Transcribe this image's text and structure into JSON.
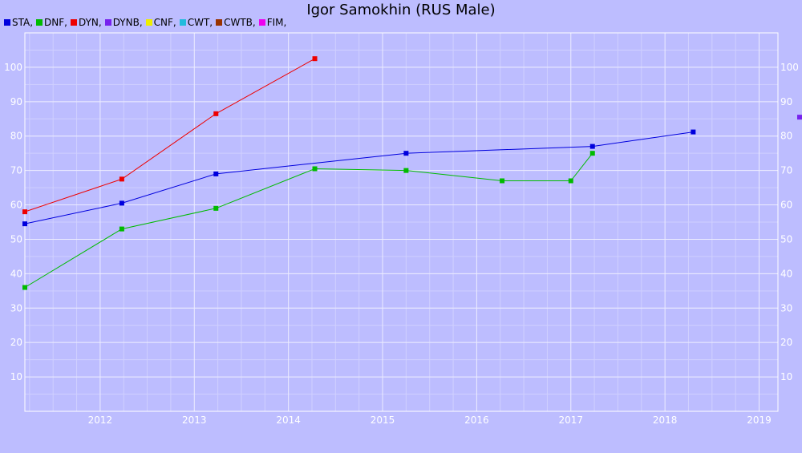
{
  "chart_data": {
    "type": "line",
    "title": "Igor Samokhin (RUS Male)",
    "xlabel": "",
    "ylabel": "",
    "xlim": [
      2011.2,
      2019.2
    ],
    "ylim": [
      0,
      110
    ],
    "grid": true,
    "legend_position": "top-left",
    "x_ticks": [
      2012,
      2013,
      2014,
      2015,
      2016,
      2017,
      2018,
      2019
    ],
    "y_ticks": [
      10,
      20,
      30,
      40,
      50,
      60,
      70,
      80,
      90,
      100
    ],
    "legend": [
      {
        "label": "STA,",
        "color": "#0000dd"
      },
      {
        "label": "DNF,",
        "color": "#00bb00"
      },
      {
        "label": "DYN,",
        "color": "#ee0000"
      },
      {
        "label": "DYNB,",
        "color": "#7722ee"
      },
      {
        "label": "CNF,",
        "color": "#eeee00"
      },
      {
        "label": "CWT,",
        "color": "#22bbdd"
      },
      {
        "label": "CWTB,",
        "color": "#993300"
      },
      {
        "label": "FIM,",
        "color": "#ee00ee"
      }
    ],
    "series": [
      {
        "name": "STA",
        "color": "#0000dd",
        "points": [
          [
            2011.2,
            54.5
          ],
          [
            2012.23,
            60.5
          ],
          [
            2013.23,
            69
          ],
          [
            2015.25,
            75
          ],
          [
            2017.23,
            77
          ],
          [
            2018.3,
            81.2
          ]
        ]
      },
      {
        "name": "DNF",
        "color": "#00bb00",
        "points": [
          [
            2011.2,
            36
          ],
          [
            2012.23,
            53
          ],
          [
            2013.23,
            59
          ],
          [
            2014.28,
            70.5
          ],
          [
            2015.25,
            70
          ],
          [
            2016.27,
            67
          ],
          [
            2017.0,
            67
          ],
          [
            2017.23,
            75
          ]
        ]
      },
      {
        "name": "DYN",
        "color": "#ee0000",
        "points": [
          [
            2011.2,
            58
          ],
          [
            2012.23,
            67.5
          ],
          [
            2013.23,
            86.5
          ],
          [
            2014.28,
            102.5
          ]
        ]
      },
      {
        "name": "DYNB",
        "color": "#7722ee",
        "points": [
          [
            2019.43,
            85.5
          ]
        ]
      }
    ]
  }
}
